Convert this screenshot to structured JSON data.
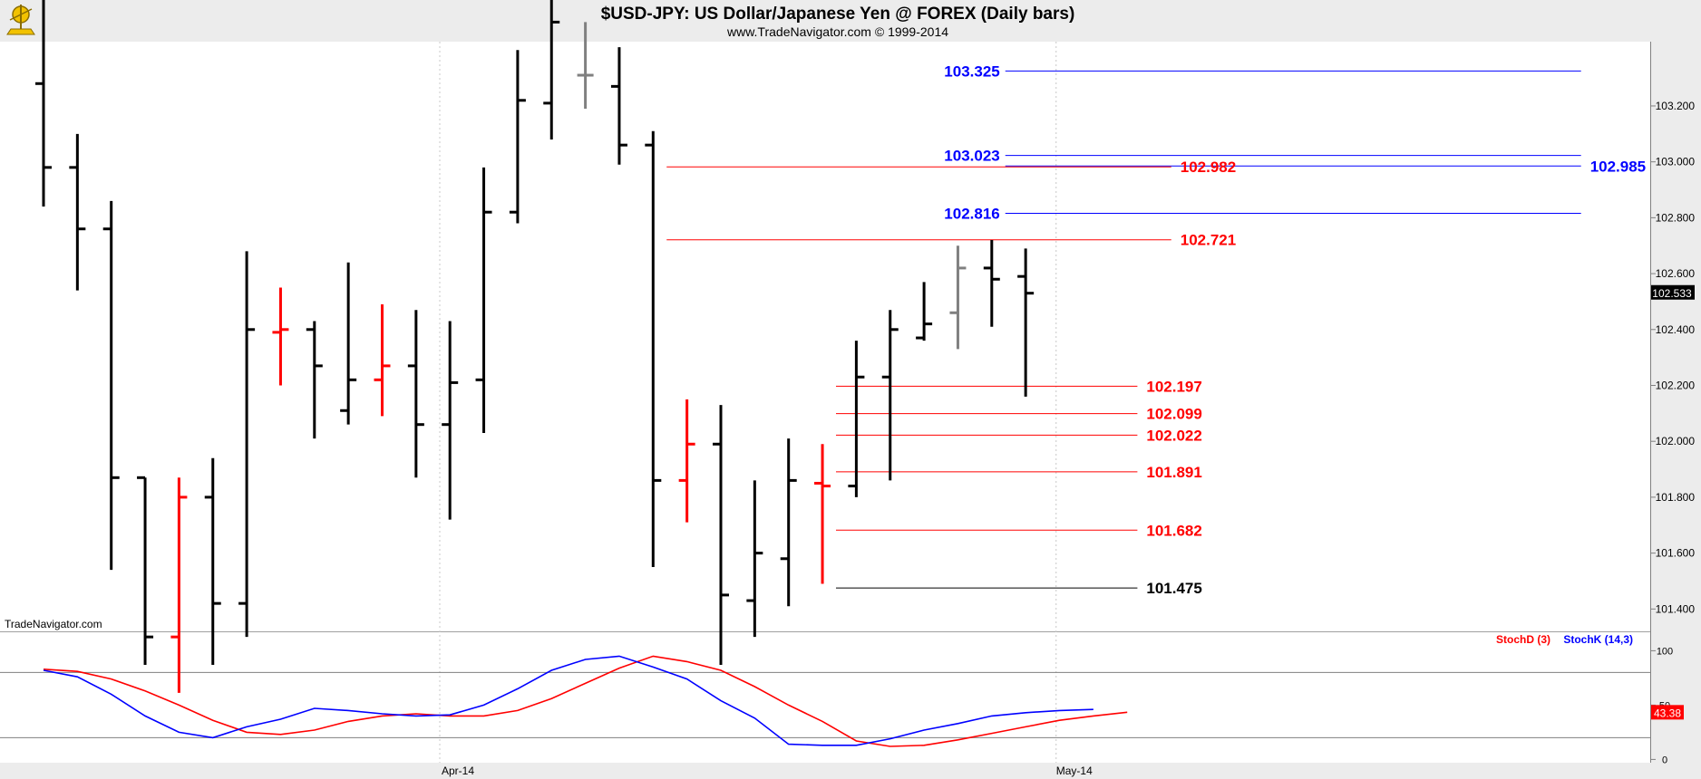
{
  "header": {
    "title": "$USD-JPY:  US Dollar/Japanese Yen @ FOREX  (Daily bars)",
    "subtitle": "www.TradeNavigator.com © 1999-2014"
  },
  "watermark": "TradeNavigator.com",
  "colors": {
    "background": "#ffffff",
    "frame": "#ececec",
    "up_bar": "#000000",
    "down_bar": "#ff0000",
    "neutral_bar": "#808080",
    "blue_levels": "#0000ff",
    "red_levels": "#ff0000",
    "stoch_d": "#ff0000",
    "stoch_k": "#0000ff"
  },
  "chart_data": [
    {
      "type": "ohlc",
      "ylim": [
        101.32,
        103.43
      ],
      "y_ticks": [
        "103.200",
        "103.000",
        "102.800",
        "102.600",
        "102.400",
        "102.200",
        "102.000",
        "101.800",
        "101.600",
        "101.400"
      ],
      "x_ticks": [
        "Apr-14",
        "May-14"
      ],
      "last_price": "102.533",
      "bars": [
        {
          "o": 103.28,
          "h": 103.6,
          "l": 102.84,
          "c": 102.98,
          "color": "black"
        },
        {
          "o": 102.98,
          "h": 103.1,
          "l": 102.54,
          "c": 102.76,
          "color": "black"
        },
        {
          "o": 102.76,
          "h": 102.86,
          "l": 101.54,
          "c": 101.87,
          "color": "black"
        },
        {
          "o": 101.87,
          "h": 101.87,
          "l": 101.2,
          "c": 101.3,
          "color": "black"
        },
        {
          "o": 101.3,
          "h": 101.87,
          "l": 101.1,
          "c": 101.8,
          "color": "red"
        },
        {
          "o": 101.8,
          "h": 101.94,
          "l": 101.2,
          "c": 101.42,
          "color": "black"
        },
        {
          "o": 101.42,
          "h": 102.68,
          "l": 101.3,
          "c": 102.4,
          "color": "black"
        },
        {
          "o": 102.39,
          "h": 102.55,
          "l": 102.2,
          "c": 102.4,
          "color": "red"
        },
        {
          "o": 102.4,
          "h": 102.43,
          "l": 102.01,
          "c": 102.27,
          "color": "black"
        },
        {
          "o": 102.11,
          "h": 102.64,
          "l": 102.06,
          "c": 102.22,
          "color": "black"
        },
        {
          "o": 102.22,
          "h": 102.49,
          "l": 102.09,
          "c": 102.27,
          "color": "red"
        },
        {
          "o": 102.27,
          "h": 102.47,
          "l": 101.87,
          "c": 102.06,
          "color": "black"
        },
        {
          "o": 102.06,
          "h": 102.43,
          "l": 101.72,
          "c": 102.21,
          "color": "black"
        },
        {
          "o": 102.22,
          "h": 102.98,
          "l": 102.03,
          "c": 102.82,
          "color": "black"
        },
        {
          "o": 102.82,
          "h": 103.4,
          "l": 102.78,
          "c": 103.22,
          "color": "black"
        },
        {
          "o": 103.21,
          "h": 103.6,
          "l": 103.08,
          "c": 103.5,
          "color": "black"
        },
        {
          "o": 103.31,
          "h": 103.5,
          "l": 103.19,
          "c": 103.31,
          "color": "gray"
        },
        {
          "o": 103.27,
          "h": 103.41,
          "l": 102.99,
          "c": 103.06,
          "color": "black"
        },
        {
          "o": 103.06,
          "h": 103.11,
          "l": 101.55,
          "c": 101.86,
          "color": "black"
        },
        {
          "o": 101.86,
          "h": 102.15,
          "l": 101.71,
          "c": 101.99,
          "color": "red"
        },
        {
          "o": 101.99,
          "h": 102.13,
          "l": 101.2,
          "c": 101.45,
          "color": "black"
        },
        {
          "o": 101.43,
          "h": 101.86,
          "l": 101.3,
          "c": 101.6,
          "color": "black"
        },
        {
          "o": 101.58,
          "h": 102.01,
          "l": 101.41,
          "c": 101.86,
          "color": "black"
        },
        {
          "o": 101.85,
          "h": 101.99,
          "l": 101.49,
          "c": 101.84,
          "color": "red"
        },
        {
          "o": 101.84,
          "h": 102.36,
          "l": 101.8,
          "c": 102.23,
          "color": "black"
        },
        {
          "o": 102.23,
          "h": 102.47,
          "l": 101.86,
          "c": 102.4,
          "color": "black"
        },
        {
          "o": 102.37,
          "h": 102.57,
          "l": 102.36,
          "c": 102.42,
          "color": "black"
        },
        {
          "o": 102.46,
          "h": 102.7,
          "l": 102.33,
          "c": 102.62,
          "color": "gray"
        },
        {
          "o": 102.62,
          "h": 102.72,
          "l": 102.41,
          "c": 102.58,
          "color": "black"
        },
        {
          "o": 102.59,
          "h": 102.69,
          "l": 102.16,
          "c": 102.53,
          "color": "black"
        }
      ],
      "levels": [
        {
          "value": 103.325,
          "label": "103.325",
          "color": "blue",
          "start_bar": 28.4,
          "end_bar": 45.4,
          "label_side": "left"
        },
        {
          "value": 103.023,
          "label": "103.023",
          "color": "blue",
          "start_bar": 28.4,
          "end_bar": 45.4,
          "label_side": "left"
        },
        {
          "value": 102.985,
          "label": "102.985",
          "color": "blue",
          "start_bar": 28.4,
          "end_bar": 45.4,
          "label_side": "right"
        },
        {
          "value": 102.982,
          "label": "102.982",
          "color": "red",
          "start_bar": 18.4,
          "end_bar": 33.3,
          "label_side": "right"
        },
        {
          "value": 102.816,
          "label": "102.816",
          "color": "blue",
          "start_bar": 28.4,
          "end_bar": 45.4,
          "label_side": "left"
        },
        {
          "value": 102.721,
          "label": "102.721",
          "color": "red",
          "start_bar": 18.4,
          "end_bar": 33.3,
          "label_side": "right"
        },
        {
          "value": 102.197,
          "label": "102.197",
          "color": "red",
          "start_bar": 23.4,
          "end_bar": 32.3,
          "label_side": "right"
        },
        {
          "value": 102.099,
          "label": "102.099",
          "color": "red",
          "start_bar": 23.4,
          "end_bar": 32.3,
          "label_side": "right"
        },
        {
          "value": 102.022,
          "label": "102.022",
          "color": "red",
          "start_bar": 23.4,
          "end_bar": 32.3,
          "label_side": "right"
        },
        {
          "value": 101.891,
          "label": "101.891",
          "color": "red",
          "start_bar": 23.4,
          "end_bar": 32.3,
          "label_side": "right"
        },
        {
          "value": 101.682,
          "label": "101.682",
          "color": "red",
          "start_bar": 23.4,
          "end_bar": 32.3,
          "label_side": "right"
        },
        {
          "value": 101.475,
          "label": "101.475",
          "color": "black",
          "start_bar": 23.4,
          "end_bar": 32.3,
          "label_side": "right"
        }
      ]
    },
    {
      "type": "line",
      "ylim": [
        -3,
        117
      ],
      "y_ticks": [
        "100",
        "50",
        "0"
      ],
      "reference_lines": [
        80,
        20
      ],
      "last_value": "43.38",
      "series": [
        {
          "name": "StochD (3)",
          "color": "red",
          "values": [
            83,
            81,
            74,
            63,
            50,
            36,
            25,
            23,
            27,
            35,
            40,
            42,
            40,
            40,
            45,
            56,
            70,
            84,
            95,
            90,
            82,
            67,
            50,
            35,
            17,
            12,
            13,
            18,
            24,
            30,
            36,
            40,
            43.38
          ]
        },
        {
          "name": "StochK (14,3)",
          "color": "blue",
          "values": [
            82,
            76,
            60,
            40,
            25,
            20,
            30,
            37,
            47,
            45,
            42,
            40,
            41,
            50,
            65,
            82,
            92,
            95,
            85,
            74,
            54,
            38,
            14,
            13,
            13,
            19,
            27,
            33,
            40,
            43,
            45,
            46
          ]
        }
      ]
    }
  ]
}
